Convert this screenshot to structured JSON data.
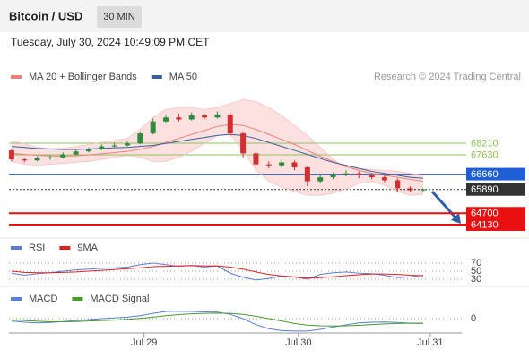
{
  "header": {
    "title": "Bitcoin / USD",
    "interval": "30 MIN",
    "timestamp": "Tuesday, July 30, 2024 10:49:09 PM CET"
  },
  "chart_data": [
    {
      "type": "candlestick",
      "source": "Research © 2024 Trading Central",
      "xlim": [
        -0.2,
        35
      ],
      "ylim": [
        63500,
        72250
      ],
      "up_color": "#2e8b3e",
      "down_color": "#d0302f",
      "band_color": "#fde0e0",
      "candles": {
        "open": [
          67850,
          67400,
          67350,
          67450,
          67500,
          67650,
          67800,
          67900,
          68050,
          68100,
          68200,
          68700,
          69300,
          69500,
          69400,
          69600,
          69500,
          69650,
          68700,
          67700,
          67150,
          67100,
          67250,
          67000,
          66300,
          66500,
          66650,
          66700,
          66600,
          66500,
          66350,
          65950,
          65850
        ],
        "high": [
          67950,
          67500,
          67550,
          67600,
          67750,
          67900,
          68000,
          68150,
          68250,
          68300,
          68800,
          69450,
          69650,
          69700,
          69750,
          69700,
          69800,
          69750,
          68800,
          67800,
          67300,
          67400,
          67350,
          67050,
          66650,
          66750,
          66850,
          66800,
          66700,
          66650,
          66450,
          66050,
          65950
        ],
        "low": [
          67300,
          67250,
          67300,
          67380,
          67450,
          67600,
          67750,
          67850,
          68000,
          68050,
          68150,
          68650,
          69250,
          69300,
          69350,
          69400,
          69450,
          68500,
          67500,
          66700,
          66950,
          67000,
          66850,
          66050,
          66200,
          66400,
          66550,
          66450,
          66400,
          66250,
          65750,
          65750,
          65800
        ],
        "close": [
          67400,
          67350,
          67450,
          67500,
          67650,
          67800,
          67900,
          68050,
          68100,
          68200,
          68700,
          69300,
          69500,
          69400,
          69600,
          69500,
          69650,
          68700,
          67700,
          67150,
          67100,
          67250,
          67000,
          66300,
          66500,
          66650,
          66700,
          66600,
          66500,
          66350,
          65950,
          65850,
          65890
        ]
      },
      "series": [
        {
          "name": "MA 20 + Bollinger Bands",
          "color": "#f08080",
          "values": [
            67700,
            67650,
            67600,
            67580,
            67560,
            67580,
            67620,
            67680,
            67740,
            67800,
            67900,
            68050,
            68250,
            68450,
            68650,
            68850,
            69050,
            69150,
            69100,
            68900,
            68650,
            68400,
            68150,
            67850,
            67550,
            67300,
            67050,
            66850,
            66700,
            66600,
            66500,
            66400,
            66300
          ],
          "upper": [
            68300,
            68200,
            68000,
            67950,
            67950,
            68050,
            68150,
            68250,
            68350,
            68450,
            68900,
            69500,
            69900,
            70000,
            70000,
            69900,
            70000,
            70200,
            70400,
            70300,
            70000,
            69600,
            69100,
            68600,
            68000,
            67400,
            67000,
            66950,
            66900,
            66850,
            66800,
            66700,
            66600
          ],
          "lower": [
            67300,
            67150,
            67100,
            67150,
            67200,
            67250,
            67300,
            67400,
            67500,
            67600,
            67500,
            67300,
            67300,
            67500,
            67800,
            68200,
            68600,
            68700,
            67800,
            66900,
            66300,
            66000,
            65800,
            65600,
            65600,
            65700,
            65900,
            66200,
            66300,
            66100,
            65800,
            65600,
            65650
          ]
        },
        {
          "name": "MA 50",
          "color": "#3c5f9a",
          "values": [
            68050,
            68000,
            67950,
            67920,
            67900,
            67900,
            67920,
            67950,
            67980,
            68000,
            68050,
            68100,
            68200,
            68300,
            68400,
            68500,
            68600,
            68650,
            68600,
            68450,
            68250,
            68050,
            67850,
            67650,
            67450,
            67250,
            67100,
            66950,
            66800,
            66700,
            66600,
            66500,
            66450
          ]
        }
      ],
      "levels": [
        {
          "value": 68210,
          "color": "#8dc35a"
        },
        {
          "value": 67630,
          "color": "#8dc35a"
        },
        {
          "value": 66660,
          "color": "#1e5fd6"
        },
        {
          "value": 65890,
          "color": "#333333"
        },
        {
          "value": 64700,
          "color": "#e81010"
        },
        {
          "value": 64130,
          "color": "#e81010"
        }
      ]
    },
    {
      "type": "line",
      "xlim": [
        -0.2,
        35
      ],
      "ylim": [
        10,
        90
      ],
      "yticks": [
        70,
        50,
        30
      ],
      "series": [
        {
          "name": "RSI",
          "color": "#5b7fd6",
          "values": [
            45,
            40,
            44,
            46,
            50,
            53,
            55,
            57,
            58,
            60,
            66,
            70,
            66,
            62,
            64,
            60,
            63,
            45,
            35,
            28,
            32,
            38,
            36,
            30,
            42,
            46,
            48,
            45,
            44,
            40,
            34,
            36,
            40
          ]
        },
        {
          "name": "9MA",
          "color": "#e02020",
          "values": [
            50,
            47,
            46,
            46,
            47,
            48,
            50,
            52,
            54,
            56,
            58,
            61,
            62,
            63,
            64,
            63,
            63,
            60,
            55,
            48,
            42,
            38,
            35,
            33,
            34,
            36,
            39,
            41,
            43,
            43,
            42,
            40,
            39
          ]
        }
      ]
    },
    {
      "type": "line",
      "xlim": [
        -0.2,
        35
      ],
      "ylim": [
        -600,
        600
      ],
      "yticks": [
        0
      ],
      "xticks": [
        {
          "value": 10.3,
          "label": "Jul 29"
        },
        {
          "value": 22.3,
          "label": "Jul 30"
        },
        {
          "value": 32.55,
          "label": "Jul 31"
        }
      ],
      "series": [
        {
          "name": "MACD",
          "color": "#5b7fd6",
          "values": [
            -100,
            -150,
            -180,
            -160,
            -120,
            -80,
            -40,
            0,
            30,
            60,
            120,
            220,
            300,
            310,
            300,
            280,
            270,
            180,
            0,
            -250,
            -420,
            -500,
            -520,
            -520,
            -450,
            -350,
            -260,
            -180,
            -150,
            -140,
            -160,
            -190,
            -200
          ]
        },
        {
          "name": "MACD Signal",
          "color": "#4a9a2a",
          "values": [
            -50,
            -80,
            -110,
            -130,
            -130,
            -120,
            -100,
            -80,
            -60,
            -30,
            10,
            60,
            120,
            170,
            200,
            220,
            230,
            220,
            180,
            100,
            0,
            -100,
            -200,
            -270,
            -300,
            -310,
            -300,
            -280,
            -250,
            -220,
            -200,
            -190,
            -190
          ]
        }
      ]
    }
  ]
}
